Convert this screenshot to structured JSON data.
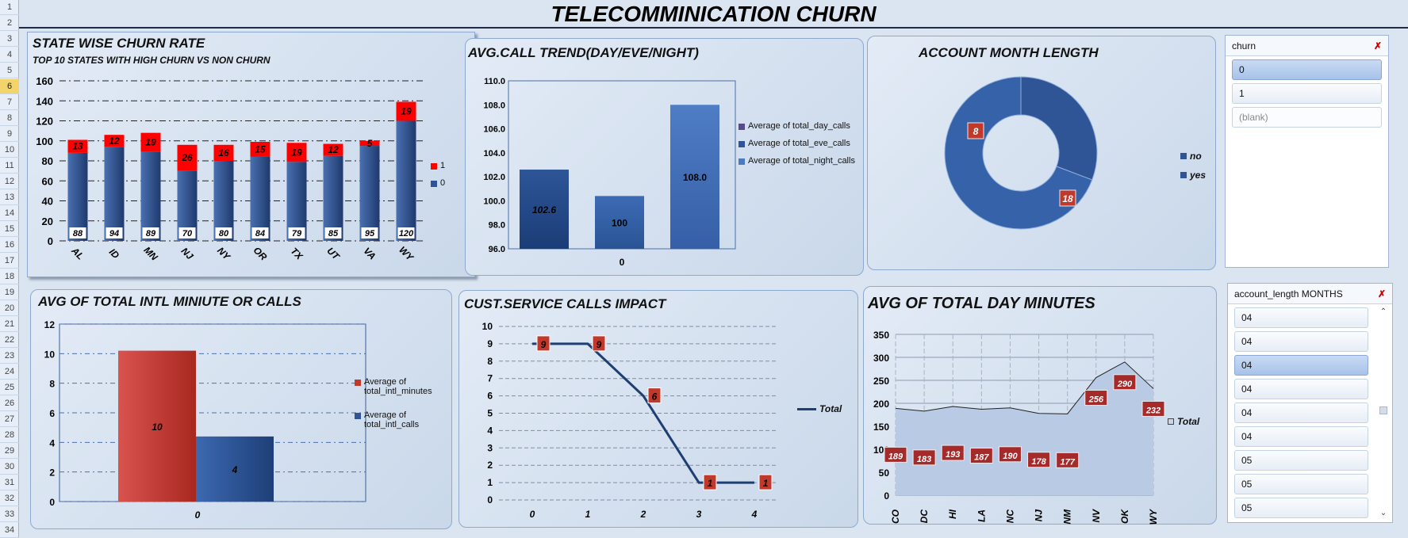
{
  "rows": [
    "1",
    "2",
    "3",
    "4",
    "5",
    "6",
    "7",
    "8",
    "9",
    "10",
    "11",
    "12",
    "13",
    "14",
    "15",
    "16",
    "17",
    "18",
    "19",
    "20",
    "21",
    "22",
    "23",
    "24",
    "25",
    "26",
    "27",
    "28",
    "29",
    "30",
    "31",
    "32",
    "33",
    "34"
  ],
  "title": "TELECOMMINICATION CHURN",
  "state_churn": {
    "title": "STATE WISE CHURN RATE",
    "subtitle": "TOP 10 STATES  WITH  HIGH  CHURN  VS NON CHURN",
    "legend": [
      "1",
      "0"
    ],
    "colors": {
      "churn": "#ff0000",
      "nonchurn": "#2f5597"
    }
  },
  "avg_call": {
    "title": "AVG.CALL TREND(DAY/EVE/NIGHT)",
    "legend": [
      "Average of total_day_calls",
      "Average of total_eve_calls",
      "Average of total_night_calls"
    ],
    "xlabel": "0"
  },
  "account_month": {
    "title": "ACCOUNT MONTH LENGTH",
    "legend": [
      "no",
      "yes"
    ]
  },
  "intl": {
    "title": "AVG OF TOTAL INTL MINIUTE OR CALLS",
    "legend": [
      "Average of total_intl_minutes",
      "Average of total_intl_calls"
    ],
    "xlabel": "0"
  },
  "cust_service": {
    "title": "CUST.SERVICE  CALLS  IMPACT",
    "legend": [
      "Total"
    ]
  },
  "day_minutes": {
    "title": "AVG OF TOTAL  DAY MINUTES",
    "legend": [
      "Total"
    ]
  },
  "chart_data": [
    {
      "type": "bar",
      "stacked": true,
      "title": "STATE WISE CHURN RATE",
      "categories": [
        "AL",
        "ID",
        "MN",
        "NJ",
        "NY",
        "OR",
        "TX",
        "UT",
        "VA",
        "WY"
      ],
      "series": [
        {
          "name": "0",
          "values": [
            88,
            94,
            89,
            70,
            80,
            84,
            79,
            85,
            95,
            120
          ]
        },
        {
          "name": "1",
          "values": [
            13,
            12,
            19,
            26,
            16,
            15,
            19,
            12,
            5,
            19
          ]
        }
      ],
      "yticks": [
        "0",
        "20",
        "40",
        "60",
        "80",
        "100",
        "120",
        "140",
        "160"
      ],
      "ylim": [
        0,
        160
      ],
      "grid": true,
      "legend_position": "right"
    },
    {
      "type": "bar",
      "title": "AVG.CALL TREND(DAY/EVE/NIGHT)",
      "categories": [
        "0"
      ],
      "series": [
        {
          "name": "Average of total_day_calls",
          "values": [
            102.6
          ]
        },
        {
          "name": "Average of total_eve_calls",
          "values": [
            100.4
          ]
        },
        {
          "name": "Average of total_night_calls",
          "values": [
            108.0
          ]
        }
      ],
      "data_labels": [
        "102.6",
        "100",
        "108.0"
      ],
      "yticks": [
        "96.0",
        "98.0",
        "100.0",
        "102.0",
        "104.0",
        "106.0",
        "108.0",
        "110.0"
      ],
      "ylim": [
        96,
        110
      ],
      "legend_position": "right"
    },
    {
      "type": "pie",
      "donut": true,
      "title": "ACCOUNT MONTH LENGTH",
      "categories": [
        "no",
        "yes"
      ],
      "values": [
        8,
        18
      ],
      "data_labels": [
        "8",
        "18"
      ],
      "legend_position": "right"
    },
    {
      "type": "bar",
      "title": "AVG OF TOTAL INTL MINIUTE OR CALLS",
      "categories": [
        "0"
      ],
      "series": [
        {
          "name": "Average of total_intl_minutes",
          "values": [
            10.2
          ]
        },
        {
          "name": "Average of total_intl_calls",
          "values": [
            4.4
          ]
        }
      ],
      "data_labels": [
        "10",
        "4"
      ],
      "yticks": [
        "0",
        "2",
        "4",
        "6",
        "8",
        "10",
        "12"
      ],
      "ylim": [
        0,
        12
      ],
      "legend_position": "right"
    },
    {
      "type": "line",
      "title": "CUST.SERVICE  CALLS  IMPACT",
      "x": [
        "0",
        "1",
        "2",
        "3",
        "4"
      ],
      "series": [
        {
          "name": "Total",
          "values": [
            9,
            9,
            6,
            1,
            1
          ]
        }
      ],
      "data_labels": [
        "9",
        "9",
        "6",
        "1",
        "1"
      ],
      "yticks": [
        "0",
        "1",
        "2",
        "3",
        "4",
        "5",
        "6",
        "7",
        "8",
        "9",
        "10"
      ],
      "ylim": [
        0,
        10
      ],
      "grid": true,
      "legend_position": "right"
    },
    {
      "type": "area",
      "title": "AVG OF TOTAL  DAY MINUTES",
      "categories": [
        "CO",
        "DC",
        "HI",
        "LA",
        "NC",
        "NJ",
        "NM",
        "NV",
        "OK",
        "WY"
      ],
      "series": [
        {
          "name": "Total",
          "values": [
            189,
            183,
            193,
            187,
            190,
            178,
            177,
            256,
            290,
            232
          ]
        }
      ],
      "data_labels": [
        "189",
        "183",
        "193",
        "187",
        "190",
        "178",
        "177",
        "256",
        "290",
        "232"
      ],
      "yticks": [
        "0",
        "50",
        "100",
        "150",
        "200",
        "250",
        "300",
        "350"
      ],
      "ylim": [
        0,
        350
      ],
      "grid": true,
      "legend_position": "right"
    }
  ],
  "slicer_churn": {
    "header": "churn",
    "items": [
      {
        "label": "0",
        "state": "selected"
      },
      {
        "label": "1",
        "state": "normal"
      },
      {
        "label": "(blank)",
        "state": "dim"
      }
    ]
  },
  "slicer_account": {
    "header": "account_length MONTHS",
    "items": [
      {
        "label": "04",
        "state": "normal"
      },
      {
        "label": "04",
        "state": "normal"
      },
      {
        "label": "04",
        "state": "selected"
      },
      {
        "label": "04",
        "state": "normal"
      },
      {
        "label": "04",
        "state": "normal"
      },
      {
        "label": "04",
        "state": "normal"
      },
      {
        "label": "05",
        "state": "normal"
      },
      {
        "label": "05",
        "state": "normal"
      },
      {
        "label": "05",
        "state": "normal"
      }
    ]
  }
}
